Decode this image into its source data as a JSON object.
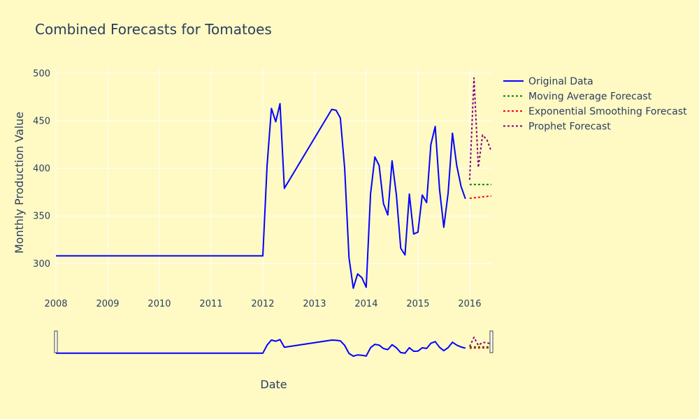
{
  "colors": {
    "background": "#FFF9C4",
    "grid": "#FFFFFF",
    "text": "#2A3F5F"
  },
  "chart_data": {
    "type": "line",
    "title": "Combined Forecasts for Tomatoes",
    "xlabel": "Date",
    "ylabel": "Monthly Production Value",
    "xlim": [
      2008.0,
      2016.42
    ],
    "ylim": [
      265,
      505
    ],
    "x_ticks": [
      2008,
      2009,
      2010,
      2011,
      2012,
      2013,
      2014,
      2015,
      2016
    ],
    "x_tick_labels": [
      "2008",
      "2009",
      "2010",
      "2011",
      "2012",
      "2013",
      "2014",
      "2015",
      "2016"
    ],
    "y_ticks": [
      300,
      350,
      400,
      450,
      500
    ],
    "y_tick_labels": [
      "300",
      "350",
      "400",
      "450",
      "500"
    ],
    "grid": true,
    "legend_position": "top-right",
    "range_slider": true,
    "series": [
      {
        "name": "Original Data",
        "color": "#0000FF",
        "dash": "solid",
        "x": [
          "2008-01",
          "2012-01",
          "2012-02",
          "2012-03",
          "2012-04",
          "2012-05",
          "2012-06",
          "2013-05",
          "2013-06",
          "2013-07",
          "2013-08",
          "2013-09",
          "2013-10",
          "2013-11",
          "2013-12",
          "2014-01",
          "2014-02",
          "2014-03",
          "2014-04",
          "2014-05",
          "2014-06",
          "2014-07",
          "2014-08",
          "2014-09",
          "2014-10",
          "2014-11",
          "2014-12",
          "2015-01",
          "2015-02",
          "2015-03",
          "2015-04",
          "2015-05",
          "2015-06",
          "2015-07",
          "2015-08",
          "2015-09",
          "2015-10",
          "2015-11",
          "2015-12"
        ],
        "values": [
          308,
          308,
          403,
          463,
          449,
          468,
          379,
          462,
          461,
          453,
          400,
          306,
          274,
          289,
          285,
          275,
          373,
          412,
          403,
          363,
          351,
          408,
          372,
          316,
          309,
          373,
          331,
          333,
          372,
          364,
          425,
          444,
          378,
          338,
          374,
          437,
          403,
          381,
          368
        ]
      },
      {
        "name": "Moving Average Forecast",
        "color": "#008000",
        "dash": "dot",
        "x": [
          "2016-01",
          "2016-02",
          "2016-03",
          "2016-04",
          "2016-05",
          "2016-06"
        ],
        "values": [
          383,
          383,
          383,
          383,
          383,
          383
        ]
      },
      {
        "name": "Exponential Smoothing Forecast",
        "color": "#FF0000",
        "dash": "dot",
        "x": [
          "2016-01",
          "2016-02",
          "2016-03",
          "2016-04",
          "2016-05",
          "2016-06"
        ],
        "values": [
          368.5,
          369,
          369.5,
          370,
          370.5,
          371
        ]
      },
      {
        "name": "Prophet Forecast",
        "color": "#800080",
        "dash": "dot",
        "x": [
          "2016-01",
          "2016-02",
          "2016-03",
          "2016-04",
          "2016-05",
          "2016-06"
        ],
        "values": [
          388,
          495,
          401,
          435,
          430,
          418
        ]
      }
    ]
  }
}
